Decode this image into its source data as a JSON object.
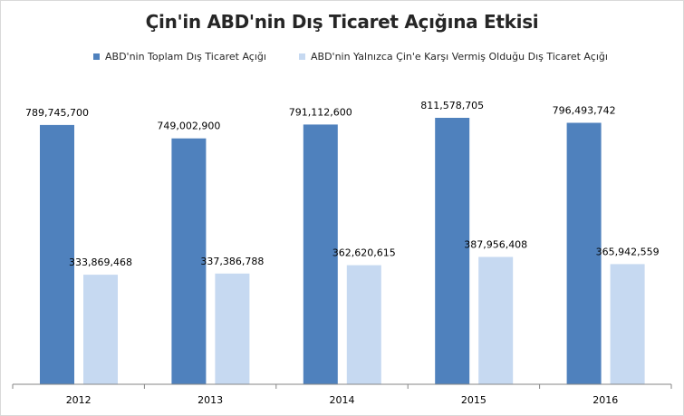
{
  "chart_data": {
    "type": "bar",
    "title": "Çin'in ABD'nin Dış Ticaret Açığına Etkisi",
    "xlabel": "",
    "ylabel": "",
    "categories": [
      "2012",
      "2013",
      "2014",
      "2015",
      "2016"
    ],
    "series": [
      {
        "name": "ABD'nin Toplam  Dış Ticaret Açığı",
        "color": "#4f81bd",
        "values": [
          789745700,
          749002900,
          791112600,
          811578705,
          796493742
        ],
        "labels": [
          "789,745,700",
          "749,002,900",
          "791,112,600",
          "811,578,705",
          "796,493,742"
        ]
      },
      {
        "name": "ABD'nin Yalnızca  Çin'e Karşı Vermiş Olduğu Dış Ticaret Açığı",
        "color": "#c6d9f1",
        "values": [
          333869468,
          337386788,
          362620615,
          387956408,
          365942559
        ],
        "labels": [
          "333,869,468",
          "337,386,788",
          "362,620,615",
          "387,956,408",
          "365,942,559"
        ]
      }
    ],
    "ylim": [
      0,
      1000000000
    ],
    "grid": false,
    "legend_position": "top"
  }
}
